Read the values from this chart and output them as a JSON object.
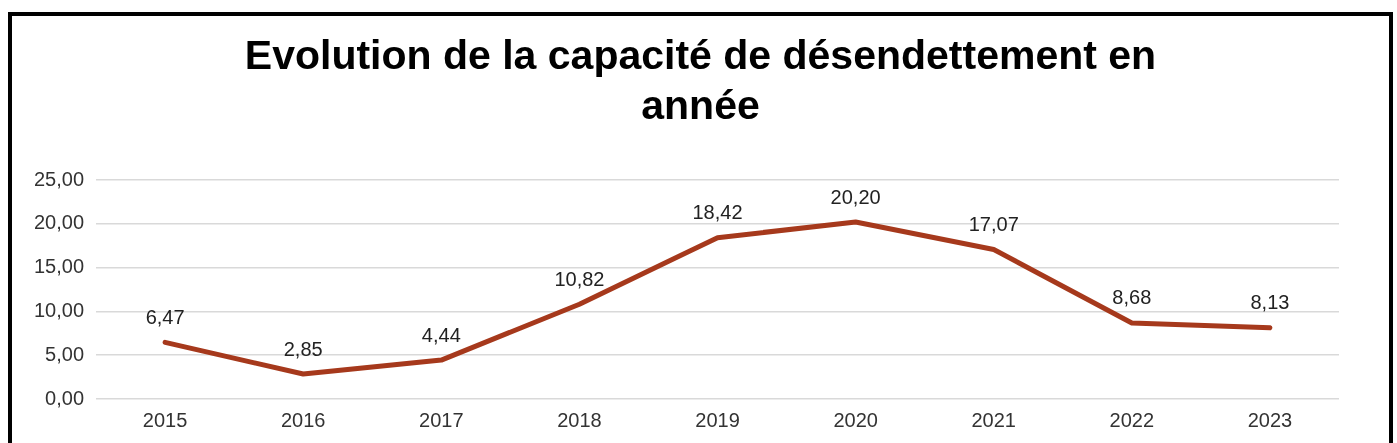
{
  "chart_data": {
    "type": "line",
    "title": "Evolution de la capacité de désendettement en année",
    "categories": [
      "2015",
      "2016",
      "2017",
      "2018",
      "2019",
      "2020",
      "2021",
      "2022",
      "2023"
    ],
    "series": [
      {
        "color": "#a6391c",
        "values": [
          6.47,
          2.85,
          4.44,
          10.82,
          18.42,
          20.2,
          17.07,
          8.68,
          8.13
        ],
        "value_labels": [
          "6,47",
          "2,85",
          "4,44",
          "10,82",
          "18,42",
          "20,20",
          "17,07",
          "8,68",
          "8,13"
        ]
      }
    ],
    "ylim": [
      0,
      25
    ],
    "yticks": [
      {
        "value": 0,
        "label": "0,00"
      },
      {
        "value": 5,
        "label": "5,00"
      },
      {
        "value": 10,
        "label": "10,00"
      },
      {
        "value": 15,
        "label": "15,00"
      },
      {
        "value": 20,
        "label": "20,00"
      },
      {
        "value": 25,
        "label": "25,00"
      }
    ],
    "grid": "y",
    "legend": false,
    "marker": "none",
    "line_style": "solid"
  }
}
